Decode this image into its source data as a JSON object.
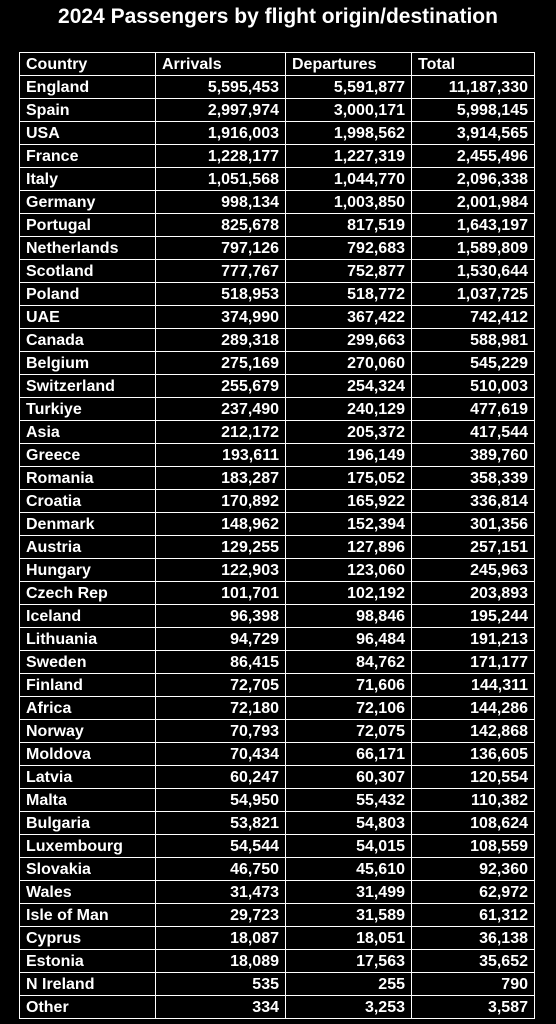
{
  "title": "2024 Passengers by flight origin/destination",
  "chart_data": {
    "type": "table",
    "title": "2024 Passengers by flight origin/destination",
    "columns": [
      "Country",
      "Arrivals",
      "Departures",
      "Total"
    ],
    "rows": [
      [
        "England",
        "5,595,453",
        "5,591,877",
        "11,187,330"
      ],
      [
        "Spain",
        "2,997,974",
        "3,000,171",
        "5,998,145"
      ],
      [
        "USA",
        "1,916,003",
        "1,998,562",
        "3,914,565"
      ],
      [
        "France",
        "1,228,177",
        "1,227,319",
        "2,455,496"
      ],
      [
        "Italy",
        "1,051,568",
        "1,044,770",
        "2,096,338"
      ],
      [
        "Germany",
        "998,134",
        "1,003,850",
        "2,001,984"
      ],
      [
        "Portugal",
        "825,678",
        "817,519",
        "1,643,197"
      ],
      [
        "Netherlands",
        "797,126",
        "792,683",
        "1,589,809"
      ],
      [
        "Scotland",
        "777,767",
        "752,877",
        "1,530,644"
      ],
      [
        "Poland",
        "518,953",
        "518,772",
        "1,037,725"
      ],
      [
        "UAE",
        "374,990",
        "367,422",
        "742,412"
      ],
      [
        "Canada",
        "289,318",
        "299,663",
        "588,981"
      ],
      [
        "Belgium",
        "275,169",
        "270,060",
        "545,229"
      ],
      [
        "Switzerland",
        "255,679",
        "254,324",
        "510,003"
      ],
      [
        "Turkiye",
        "237,490",
        "240,129",
        "477,619"
      ],
      [
        "Asia",
        "212,172",
        "205,372",
        "417,544"
      ],
      [
        "Greece",
        "193,611",
        "196,149",
        "389,760"
      ],
      [
        "Romania",
        "183,287",
        "175,052",
        "358,339"
      ],
      [
        "Croatia",
        "170,892",
        "165,922",
        "336,814"
      ],
      [
        "Denmark",
        "148,962",
        "152,394",
        "301,356"
      ],
      [
        "Austria",
        "129,255",
        "127,896",
        "257,151"
      ],
      [
        "Hungary",
        "122,903",
        "123,060",
        "245,963"
      ],
      [
        "Czech Rep",
        "101,701",
        "102,192",
        "203,893"
      ],
      [
        "Iceland",
        "96,398",
        "98,846",
        "195,244"
      ],
      [
        "Lithuania",
        "94,729",
        "96,484",
        "191,213"
      ],
      [
        "Sweden",
        "86,415",
        "84,762",
        "171,177"
      ],
      [
        "Finland",
        "72,705",
        "71,606",
        "144,311"
      ],
      [
        "Africa",
        "72,180",
        "72,106",
        "144,286"
      ],
      [
        "Norway",
        "70,793",
        "72,075",
        "142,868"
      ],
      [
        "Moldova",
        "70,434",
        "66,171",
        "136,605"
      ],
      [
        "Latvia",
        "60,247",
        "60,307",
        "120,554"
      ],
      [
        "Malta",
        "54,950",
        "55,432",
        "110,382"
      ],
      [
        "Bulgaria",
        "53,821",
        "54,803",
        "108,624"
      ],
      [
        "Luxembourg",
        "54,544",
        "54,015",
        "108,559"
      ],
      [
        "Slovakia",
        "46,750",
        "45,610",
        "92,360"
      ],
      [
        "Wales",
        "31,473",
        "31,499",
        "62,972"
      ],
      [
        "Isle of Man",
        "29,723",
        "31,589",
        "61,312"
      ],
      [
        "Cyprus",
        "18,087",
        "18,051",
        "36,138"
      ],
      [
        "Estonia",
        "18,089",
        "17,563",
        "35,652"
      ],
      [
        "N Ireland",
        "535",
        "255",
        "790"
      ],
      [
        "Other",
        "334",
        "3,253",
        "3,587"
      ]
    ]
  },
  "colors": {
    "background": "#000000",
    "text": "#ffffff",
    "grid": "#ffffff"
  }
}
